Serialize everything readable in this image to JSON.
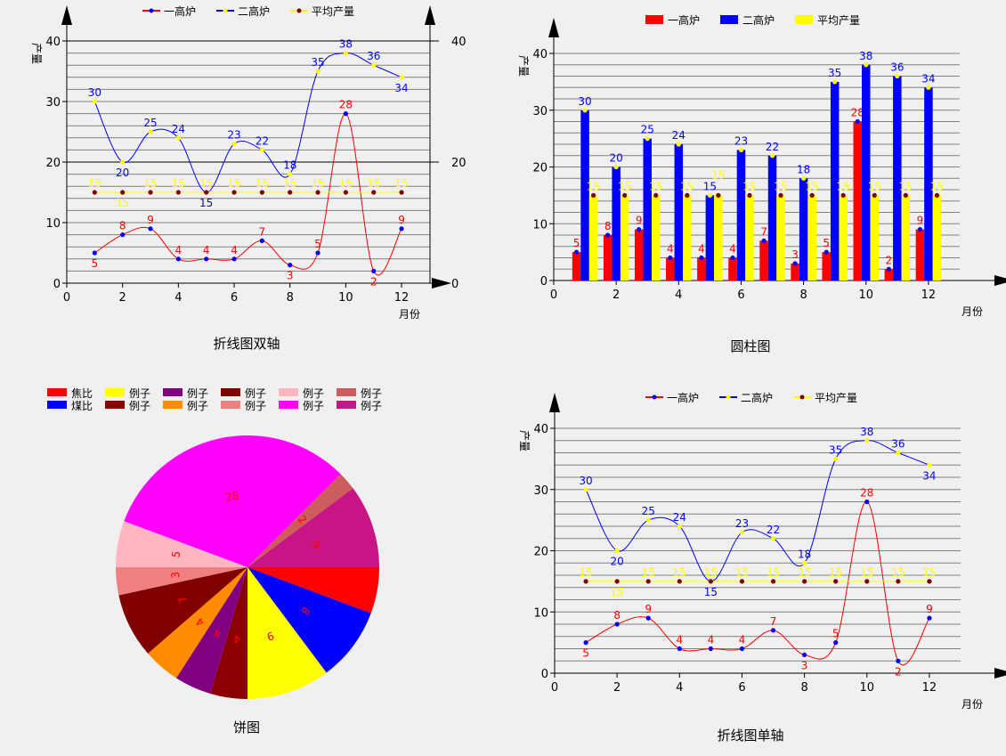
{
  "chart_data": [
    {
      "type": "line",
      "title": "折线图双轴",
      "xlabel": "月份",
      "ylabel": "产量",
      "xlim": [
        0,
        13
      ],
      "ylim": [
        0,
        40
      ],
      "y2lim": [
        0,
        40
      ],
      "xticks": [
        "0",
        "2",
        "4",
        "6",
        "8",
        "10",
        "12"
      ],
      "yticks": [
        "0",
        "10",
        "20",
        "30",
        "40"
      ],
      "y2ticks": [
        "0",
        "20",
        "40"
      ],
      "grid": true,
      "smooth": true,
      "legend_position": "top",
      "x": [
        1,
        2,
        3,
        4,
        5,
        6,
        7,
        8,
        9,
        10,
        11,
        12
      ],
      "series": [
        {
          "name": "一高炉",
          "values": [
            5,
            8,
            9,
            4,
            4,
            4,
            7,
            3,
            5,
            28,
            2,
            9
          ],
          "color": "#ff0000",
          "marker_color": "#0000ff",
          "label_color": "#ff0000"
        },
        {
          "name": "二高炉",
          "values": [
            30,
            20,
            25,
            24,
            15,
            23,
            22,
            18,
            35,
            38,
            36,
            34
          ],
          "color": "#0000ff",
          "marker_color": "#ffff00",
          "label_color": "#0000ff"
        },
        {
          "name": "平均产量",
          "values": [
            15,
            15,
            15,
            15,
            15,
            15,
            15,
            15,
            15,
            15,
            15,
            15
          ],
          "color": "#ffff00",
          "marker_color": "#800000",
          "label_color": "#ffff00"
        }
      ]
    },
    {
      "type": "bar",
      "title": "圆柱图",
      "xlabel": "月份",
      "ylabel": "产量",
      "xlim": [
        0,
        13
      ],
      "ylim": [
        0,
        40
      ],
      "xticks": [
        "0",
        "2",
        "4",
        "6",
        "8",
        "10",
        "12"
      ],
      "yticks": [
        "0",
        "10",
        "20",
        "30",
        "40"
      ],
      "grid": true,
      "legend_position": "top",
      "x": [
        1,
        2,
        3,
        4,
        5,
        6,
        7,
        8,
        9,
        10,
        11,
        12
      ],
      "series": [
        {
          "name": "一高炉",
          "values": [
            5,
            8,
            9,
            4,
            4,
            4,
            7,
            3,
            5,
            28,
            2,
            9
          ],
          "color": "#ff0000",
          "marker_color": "#0000ff",
          "label_color": "#ff0000"
        },
        {
          "name": "二高炉",
          "values": [
            30,
            20,
            25,
            24,
            15,
            23,
            22,
            18,
            35,
            38,
            36,
            34
          ],
          "color": "#0000ff",
          "marker_color": "#ffff00",
          "label_color": "#0000ff"
        },
        {
          "name": "平均产量",
          "values": [
            15,
            15,
            15,
            15,
            15,
            15,
            15,
            15,
            15,
            15,
            15,
            15
          ],
          "color": "#ffff00",
          "marker_color": "#800000",
          "label_color": "#ffff00"
        }
      ]
    },
    {
      "type": "pie",
      "title": "饼图",
      "legend_position": "top-left",
      "slices": [
        {
          "name": "焦比",
          "value": 5,
          "color": "#ff0000"
        },
        {
          "name": "煤比",
          "value": 8,
          "color": "#0000ff"
        },
        {
          "name": "例子",
          "value": 9,
          "color": "#ffff00"
        },
        {
          "name": "例子",
          "value": 4,
          "color": "#8b0000"
        },
        {
          "name": "例子",
          "value": 4,
          "color": "#800080"
        },
        {
          "name": "例子",
          "value": 4,
          "color": "#ff8c00"
        },
        {
          "name": "例子",
          "value": 7,
          "color": "#800000"
        },
        {
          "name": "例子",
          "value": 3,
          "color": "#f08080"
        },
        {
          "name": "例子",
          "value": 5,
          "color": "#ffb6c1"
        },
        {
          "name": "例子",
          "value": 28,
          "color": "#ff00ff"
        },
        {
          "name": "例子",
          "value": 2,
          "color": "#cd5c5c"
        },
        {
          "name": "例子",
          "value": 9,
          "color": "#c71585"
        }
      ],
      "label_color": "#ff0000"
    },
    {
      "type": "line",
      "title": "折线图单轴",
      "xlabel": "月份",
      "ylabel": "产量",
      "xlim": [
        0,
        13
      ],
      "ylim": [
        0,
        40
      ],
      "xticks": [
        "0",
        "2",
        "4",
        "6",
        "8",
        "10",
        "12"
      ],
      "yticks": [
        "0",
        "10",
        "20",
        "30",
        "40"
      ],
      "grid": true,
      "smooth": true,
      "legend_position": "top",
      "x": [
        1,
        2,
        3,
        4,
        5,
        6,
        7,
        8,
        9,
        10,
        11,
        12
      ],
      "series": [
        {
          "name": "一高炉",
          "values": [
            5,
            8,
            9,
            4,
            4,
            4,
            7,
            3,
            5,
            28,
            2,
            9
          ],
          "color": "#ff0000",
          "marker_color": "#0000ff",
          "label_color": "#ff0000"
        },
        {
          "name": "二高炉",
          "values": [
            30,
            20,
            25,
            24,
            15,
            23,
            22,
            18,
            35,
            38,
            36,
            34
          ],
          "color": "#0000ff",
          "marker_color": "#ffff00",
          "label_color": "#0000ff"
        },
        {
          "name": "平均产量",
          "values": [
            15,
            15,
            15,
            15,
            15,
            15,
            15,
            15,
            15,
            15,
            15,
            15
          ],
          "color": "#ffff00",
          "marker_color": "#800000",
          "label_color": "#ffff00"
        }
      ]
    }
  ]
}
